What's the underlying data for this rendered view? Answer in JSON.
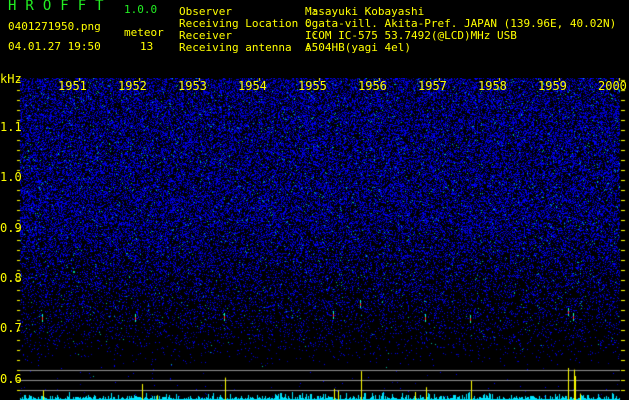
{
  "app": {
    "title": "HROFFT",
    "version": "1.0.0"
  },
  "file": {
    "name": "0401271950.png",
    "datetime": "04.01.27 19:50"
  },
  "meteor": {
    "label": "meteor",
    "count": "13"
  },
  "info": {
    "observer_label": "Observer            :",
    "observer": "Masayuki Kobayashi",
    "location_label": "Receiving Location :",
    "location": "Ogata-vill. Akita-Pref. JAPAN (139.96E, 40.02N)",
    "receiver_label": "Receiver            :",
    "receiver": "ICOM IC-575 53.7492(@LCD)MHz USB",
    "antenna_label": "Receiving antenna  :",
    "antenna": "A504HB(yagi 4el)"
  },
  "axis": {
    "unit": "kHz",
    "y_ticks": [
      "1.1",
      "1.0",
      "0.9",
      "0.8",
      "0.7",
      "0.6"
    ],
    "x_labels": [
      "1951",
      "1952",
      "1953",
      "1954",
      "1955",
      "1956",
      "1957",
      "1958",
      "1959",
      "2000"
    ]
  },
  "colors": {
    "text": "#ffff00",
    "title": "#22ee22",
    "noise": "#0000ff",
    "counts": "#00e5ff",
    "meteor_bars": "#ffff00"
  }
}
